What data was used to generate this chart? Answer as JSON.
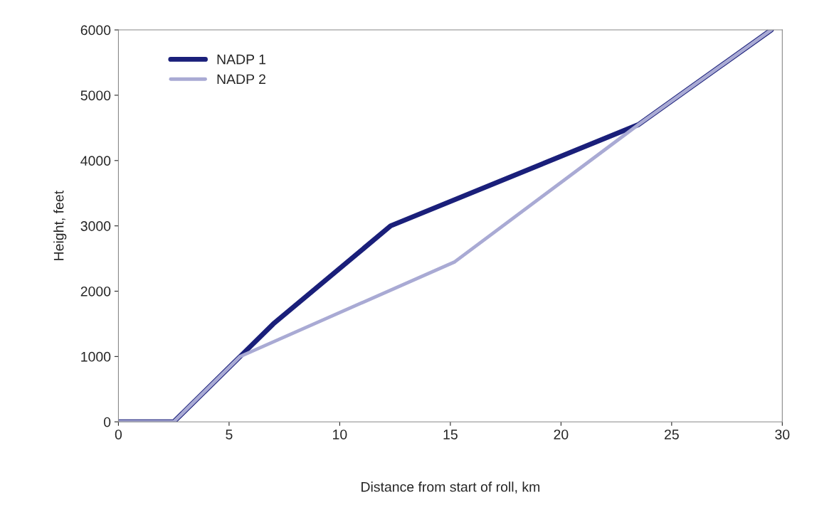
{
  "chart_data": {
    "type": "line",
    "xlabel": "Distance from start of roll, km",
    "ylabel": "Height, feet",
    "xlim": [
      0,
      30
    ],
    "xticks": [
      0,
      5,
      10,
      15,
      20,
      25,
      30
    ],
    "ylim": [
      0,
      6000
    ],
    "yticks": [
      0,
      1000,
      2000,
      3000,
      4000,
      5000,
      6000
    ],
    "grid": false,
    "legend": "top left",
    "marker": "none",
    "line_style": "solid",
    "series": [
      {
        "name": "NADP 1",
        "color": "#1a1f7a",
        "x": [
          0,
          2.5,
          5.5,
          7,
          12.3,
          23.5,
          29.5
        ],
        "values": [
          0,
          0,
          1000,
          1500,
          3000,
          4550,
          6000
        ]
      },
      {
        "name": "NADP 2",
        "color": "#a9aad4",
        "x": [
          0,
          2.5,
          5.5,
          15.2,
          23.5,
          29.5
        ],
        "values": [
          0,
          0,
          1000,
          2450,
          4550,
          6000
        ]
      }
    ]
  }
}
